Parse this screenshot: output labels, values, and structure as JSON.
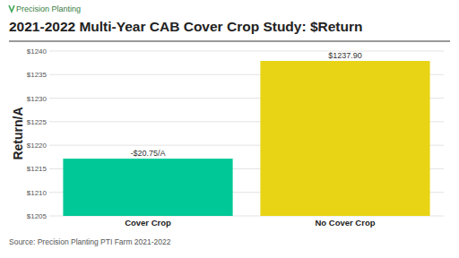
{
  "chart_data": {
    "type": "bar",
    "logo": "Precision Planting",
    "title": "2021-2022 Multi-Year CAB Cover Crop Study: $Return",
    "y_label": "Return/A",
    "source": "Source: Precision Planting PTI Farm 2021-2022",
    "categories": [
      "Cover Crop",
      "No Cover Crop"
    ],
    "values": [
      1217.15,
      1237.9
    ],
    "value_labels": [
      null,
      "$1237.90"
    ],
    "data_labels": true,
    "annotations": [
      {
        "text": "-$20.75/A",
        "x": "Cover Crop"
      }
    ],
    "colors": [
      "#00c896",
      "#e8d414"
    ],
    "ylim": [
      1205,
      1240
    ],
    "yticks": [
      {
        "value": 1205,
        "label": "$1205"
      },
      {
        "value": 1210,
        "label": "$1210"
      },
      {
        "value": 1215,
        "label": "$1215"
      },
      {
        "value": 1220,
        "label": "$1220"
      },
      {
        "value": 1225,
        "label": "$1225"
      },
      {
        "value": 1230,
        "label": "$1230"
      },
      {
        "value": 1235,
        "label": "$1235"
      },
      {
        "value": 1240,
        "label": "$1240"
      }
    ],
    "grid": true
  }
}
